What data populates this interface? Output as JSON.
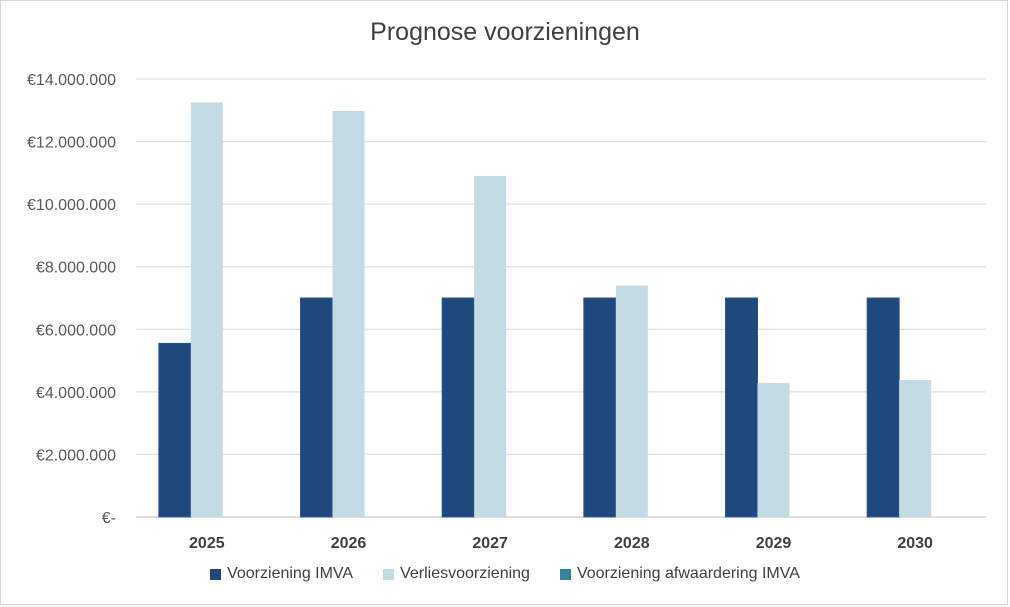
{
  "chart_data": {
    "type": "bar",
    "title": "Prognose voorzieningen",
    "xlabel": "",
    "ylabel": "",
    "categories": [
      "2025",
      "2026",
      "2027",
      "2028",
      "2029",
      "2030"
    ],
    "y_ticks": [
      0,
      2000000,
      4000000,
      6000000,
      8000000,
      10000000,
      12000000,
      14000000
    ],
    "y_tick_labels": [
      "€-",
      "€2.000.000",
      "€4.000.000",
      "€6.000.000",
      "€8.000.000",
      "€10.000.000",
      "€12.000.000",
      "€14.000.000"
    ],
    "ylim": [
      0,
      14000000
    ],
    "grid": true,
    "legend_position": "bottom",
    "series": [
      {
        "name": "Voorziening IMVA",
        "color": "#1f497d",
        "values": [
          5550000,
          7000000,
          7000000,
          7000000,
          7000000,
          7000000
        ]
      },
      {
        "name": "Verliesvoorziening",
        "color": "#c2dbe4",
        "values": [
          13250000,
          12980000,
          10900000,
          7400000,
          4280000,
          4380000
        ]
      },
      {
        "name": "Voorziening afwaardering IMVA",
        "color": "#31849b",
        "values": [
          0,
          0,
          0,
          0,
          0,
          0
        ]
      }
    ]
  }
}
